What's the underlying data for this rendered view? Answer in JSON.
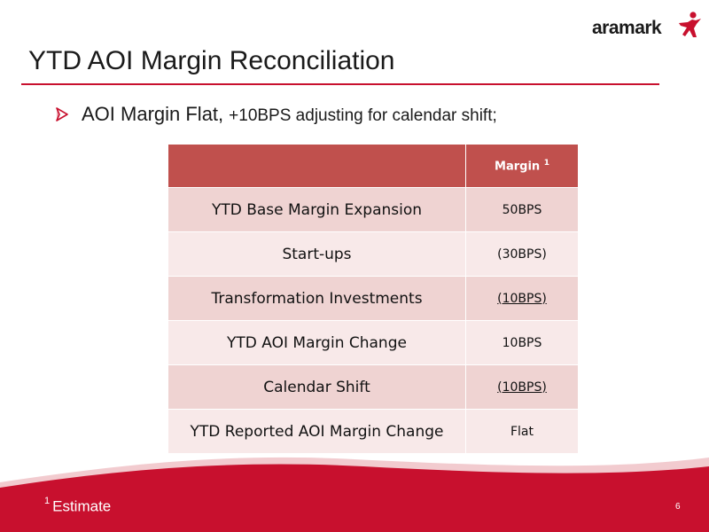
{
  "logo": {
    "text": "aramark"
  },
  "title": "YTD AOI Margin Reconciliation",
  "bullet": {
    "main": "AOI Margin Flat,",
    "sub": "+10BPS adjusting for calendar shift;"
  },
  "table": {
    "header": {
      "label": "",
      "value": "Margin",
      "sup": "1"
    },
    "rows": [
      {
        "label": "YTD Base Margin Expansion",
        "value": "50BPS"
      },
      {
        "label": "Start-ups",
        "value": "(30BPS)"
      },
      {
        "label": "Transformation Investments",
        "value": "(10BPS)"
      },
      {
        "label": "YTD AOI Margin Change",
        "value": "10BPS"
      },
      {
        "label": "Calendar Shift",
        "value": "(10BPS)"
      },
      {
        "label": "YTD Reported AOI Margin Change",
        "value": "Flat"
      }
    ]
  },
  "footnote": {
    "sup": "1",
    "text": "Estimate"
  },
  "page_number": "6",
  "colors": {
    "brand_red": "#c8102e",
    "header_red": "#c0504d",
    "row_odd": "#efd3d2",
    "row_even": "#f8e9e9"
  }
}
